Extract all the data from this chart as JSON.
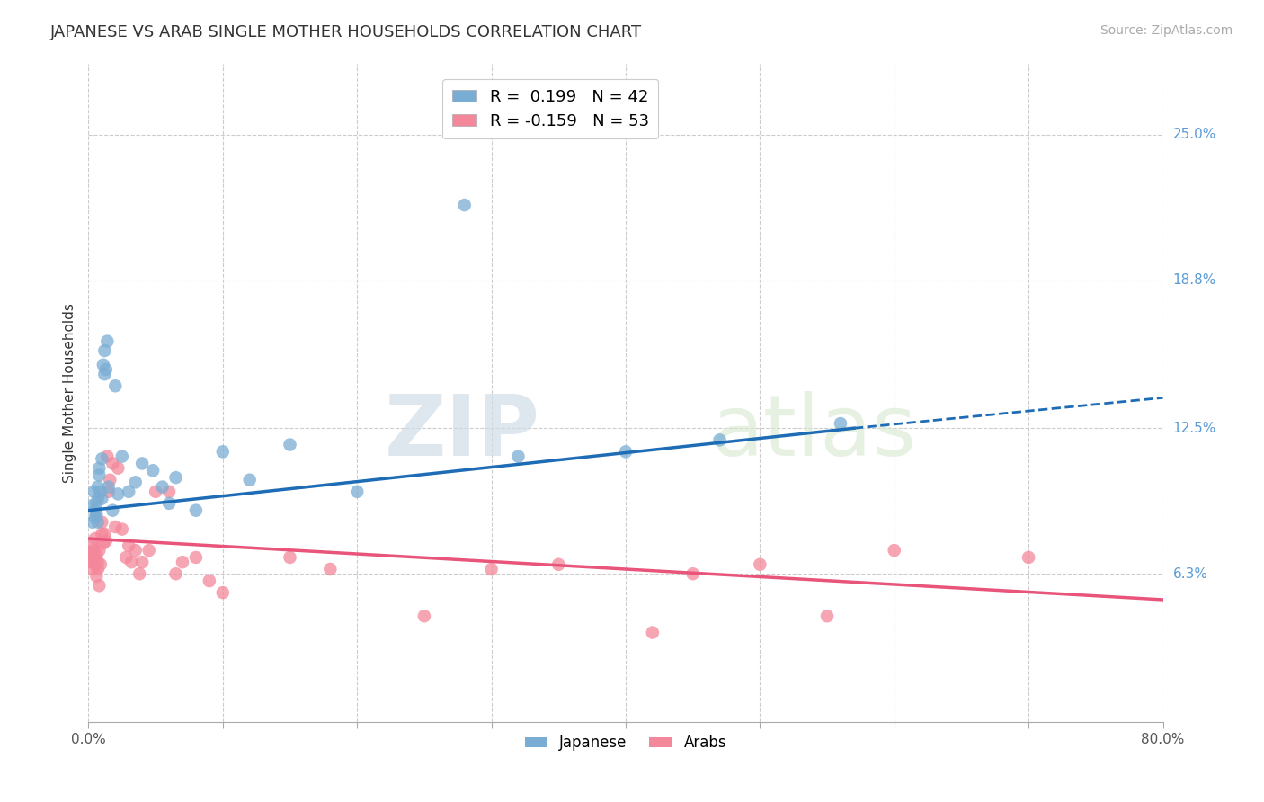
{
  "title": "JAPANESE VS ARAB SINGLE MOTHER HOUSEHOLDS CORRELATION CHART",
  "source": "Source: ZipAtlas.com",
  "ylabel": "Single Mother Households",
  "xlim": [
    0.0,
    0.8
  ],
  "ylim": [
    0.0,
    0.28
  ],
  "xticks": [
    0.0,
    0.1,
    0.2,
    0.3,
    0.4,
    0.5,
    0.6,
    0.7,
    0.8
  ],
  "ytick_positions": [
    0.063,
    0.125,
    0.188,
    0.25
  ],
  "ytick_labels": [
    "6.3%",
    "12.5%",
    "18.8%",
    "25.0%"
  ],
  "title_fontsize": 13,
  "source_fontsize": 10,
  "axis_label_fontsize": 11,
  "tick_fontsize": 11,
  "background_color": "#ffffff",
  "grid_color": "#cccccc",
  "japanese_color": "#7aadd4",
  "arab_color": "#f4879a",
  "japanese_line_color": "#1e6cb5",
  "arab_line_color": "#e8547a",
  "R_japanese": 0.199,
  "N_japanese": 42,
  "R_arab": -0.159,
  "N_arab": 53,
  "legend_label_japanese": "Japanese",
  "legend_label_arab": "Arabs",
  "watermark_zip": "ZIP",
  "watermark_atlas": "atlas",
  "japanese_scatter_x": [
    0.002,
    0.003,
    0.004,
    0.005,
    0.005,
    0.006,
    0.006,
    0.007,
    0.007,
    0.007,
    0.008,
    0.008,
    0.009,
    0.01,
    0.01,
    0.011,
    0.012,
    0.012,
    0.013,
    0.014,
    0.015,
    0.018,
    0.02,
    0.022,
    0.025,
    0.03,
    0.035,
    0.04,
    0.048,
    0.055,
    0.06,
    0.065,
    0.08,
    0.1,
    0.12,
    0.15,
    0.2,
    0.28,
    0.32,
    0.4,
    0.47,
    0.56
  ],
  "japanese_scatter_y": [
    0.092,
    0.085,
    0.098,
    0.09,
    0.087,
    0.093,
    0.088,
    0.095,
    0.085,
    0.1,
    0.105,
    0.108,
    0.098,
    0.112,
    0.095,
    0.152,
    0.148,
    0.158,
    0.15,
    0.162,
    0.1,
    0.09,
    0.143,
    0.097,
    0.113,
    0.098,
    0.102,
    0.11,
    0.107,
    0.1,
    0.093,
    0.104,
    0.09,
    0.115,
    0.103,
    0.118,
    0.098,
    0.22,
    0.113,
    0.115,
    0.12,
    0.127
  ],
  "arab_scatter_x": [
    0.001,
    0.002,
    0.002,
    0.003,
    0.003,
    0.004,
    0.004,
    0.005,
    0.005,
    0.006,
    0.006,
    0.007,
    0.007,
    0.008,
    0.008,
    0.009,
    0.01,
    0.01,
    0.011,
    0.012,
    0.013,
    0.014,
    0.015,
    0.016,
    0.018,
    0.02,
    0.022,
    0.025,
    0.028,
    0.03,
    0.032,
    0.035,
    0.038,
    0.04,
    0.045,
    0.05,
    0.06,
    0.065,
    0.07,
    0.08,
    0.09,
    0.1,
    0.15,
    0.18,
    0.25,
    0.3,
    0.35,
    0.42,
    0.45,
    0.5,
    0.55,
    0.6,
    0.7
  ],
  "arab_scatter_y": [
    0.07,
    0.068,
    0.072,
    0.065,
    0.075,
    0.07,
    0.073,
    0.067,
    0.078,
    0.071,
    0.062,
    0.065,
    0.068,
    0.058,
    0.073,
    0.067,
    0.08,
    0.085,
    0.076,
    0.08,
    0.077,
    0.113,
    0.098,
    0.103,
    0.11,
    0.083,
    0.108,
    0.082,
    0.07,
    0.075,
    0.068,
    0.073,
    0.063,
    0.068,
    0.073,
    0.098,
    0.098,
    0.063,
    0.068,
    0.07,
    0.06,
    0.055,
    0.07,
    0.065,
    0.045,
    0.065,
    0.067,
    0.038,
    0.063,
    0.067,
    0.045,
    0.073,
    0.07
  ],
  "japanese_trend_x0": 0.0,
  "japanese_trend_x1": 0.57,
  "japanese_trend_x2": 0.8,
  "japanese_trend_y0": 0.09,
  "japanese_trend_y1": 0.125,
  "japanese_trend_y2": 0.138,
  "arab_trend_x0": 0.0,
  "arab_trend_x1": 0.8,
  "arab_trend_y0": 0.078,
  "arab_trend_y1": 0.052
}
